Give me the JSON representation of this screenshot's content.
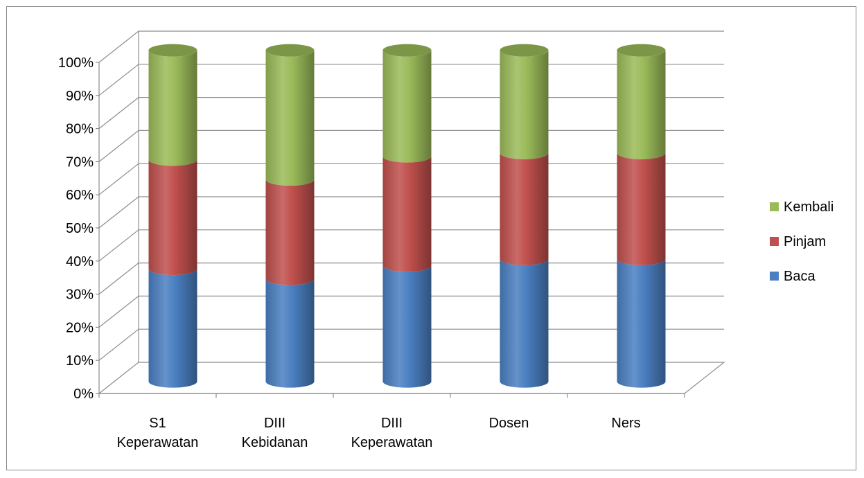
{
  "chart_data": {
    "type": "bar",
    "stacked": true,
    "stacking": "percent",
    "style": "3d-cylinder",
    "categories": [
      [
        "S1",
        "Keperawatan"
      ],
      [
        "DIII",
        "Kebidanan"
      ],
      [
        "DIII",
        "Keperawatan"
      ],
      [
        "Dosen"
      ],
      [
        "Ners"
      ]
    ],
    "series": [
      {
        "name": "Baca",
        "color": "#4a7fc1",
        "values": [
          34,
          31,
          35,
          37,
          37
        ]
      },
      {
        "name": "Pinjam",
        "color": "#c0504d",
        "values": [
          33,
          30,
          33,
          32,
          32
        ]
      },
      {
        "name": "Kembali",
        "color": "#9bbb59",
        "values": [
          33,
          39,
          32,
          31,
          31
        ]
      }
    ],
    "y_ticks": [
      "0%",
      "10%",
      "20%",
      "30%",
      "40%",
      "50%",
      "60%",
      "70%",
      "80%",
      "90%",
      "100%"
    ],
    "ylim": [
      0,
      100
    ],
    "grid": true,
    "legend": {
      "position": "right",
      "order": [
        "Kembali",
        "Pinjam",
        "Baca"
      ]
    }
  }
}
